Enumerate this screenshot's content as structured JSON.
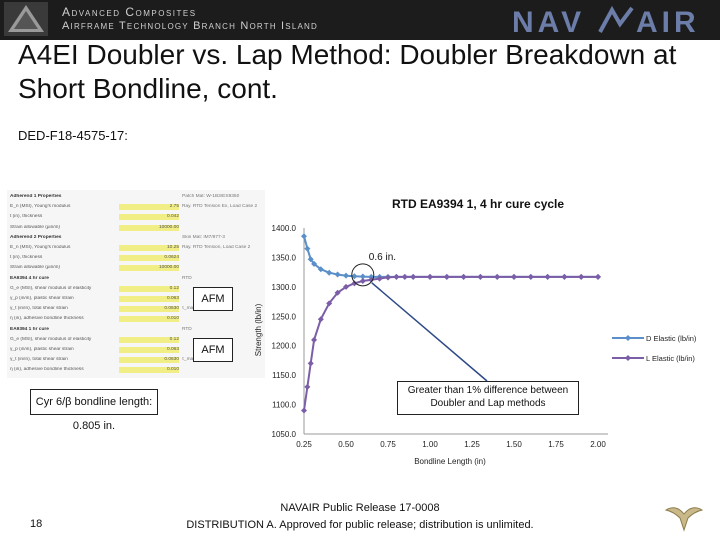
{
  "banner": {
    "line1": "Advanced Composites",
    "line2": "Airframe Technology Branch North Island",
    "logo_text": "NAVAIR"
  },
  "slide": {
    "title": "A4EI Doubler vs. Lap Method: Doubler Breakdown at Short Bondline, cont.",
    "doc_id": "DED-F18-4575-17:",
    "page_number": "18"
  },
  "properties_panel": {
    "rows": [
      {
        "label": "Adherend 1 Properties",
        "value": "",
        "note": "Patch Mat: W-1B3/ES9350",
        "header": true
      },
      {
        "label": "E_n (MSI), Young's modulus",
        "value": "2.75",
        "note": "Ray. RTD Tension Ex, Load Case 2"
      },
      {
        "label": "t (in), thickness",
        "value": "0.042",
        "note": ""
      },
      {
        "label": "Strain allowable (µin/in)",
        "value": "10000.00",
        "note": ""
      },
      {
        "label": "Adherend 2 Properties",
        "value": "",
        "note": "Skin Mat: IM7/977-3",
        "header": true
      },
      {
        "label": "E_n (MSI), Young's modulus",
        "value": "10.25",
        "note": "Ray. RTD Tension, Load Case 2"
      },
      {
        "label": "t (in), thickness",
        "value": "0.0624",
        "note": ""
      },
      {
        "label": "Strain allowable (µin/in)",
        "value": "10000.00",
        "note": ""
      },
      {
        "label": "EA9394 4 hr cure",
        "value": "",
        "note": "RTD",
        "header": true
      },
      {
        "label": "G_e (MSI), shear modulus of elasticity",
        "value": "0.12",
        "note": ""
      },
      {
        "label": "γ_p (in/in), plastic shear strain",
        "value": "0.063",
        "note": ""
      },
      {
        "label": "γ_t (in/in), total shear strain",
        "value": "0.0630",
        "note": "τ_max"
      },
      {
        "label": "η (in), adhesive bondline thickness",
        "value": "0.010",
        "note": ""
      },
      {
        "label": "EA9394 1 hr cure",
        "value": "",
        "note": "RTD",
        "header": true
      },
      {
        "label": "G_e (MSI), shear modulus of elasticity",
        "value": "0.12",
        "note": ""
      },
      {
        "label": "γ_p (in/in), plastic shear strain",
        "value": "0.063",
        "note": ""
      },
      {
        "label": "γ_t (in/in), total shear strain",
        "value": "0.0630",
        "note": "τ_max"
      },
      {
        "label": "η (in), adhesive bondline thickness",
        "value": "0.010",
        "note": ""
      }
    ],
    "afm_label_1": "AFM",
    "afm_label_2": "AFM",
    "cyr_label": "Cyr 6/β bondline length: 0.805 in."
  },
  "chart_data": {
    "type": "line",
    "title": "RTD EA9394  1, 4 hr cure cycle",
    "xlabel": "Bondline Length (in)",
    "ylabel": "Strength (lb/in)",
    "xlim": [
      0.25,
      2.0
    ],
    "ylim": [
      1050,
      1400
    ],
    "x_ticks": [
      0.25,
      0.5,
      0.75,
      1.0,
      1.25,
      1.5,
      1.75,
      2.0
    ],
    "x_tick_labels": [
      "0.25",
      "0.50",
      "0.75",
      "1.00",
      "1.25",
      "1.50",
      "1.75",
      "2.00"
    ],
    "y_ticks": [
      1050,
      1100,
      1150,
      1200,
      1250,
      1300,
      1350,
      1400
    ],
    "y_tick_labels": [
      "1050.0",
      "1100.0",
      "1150.0",
      "1200.0",
      "1250.0",
      "1300.0",
      "1350.0",
      "1400.0"
    ],
    "grid": false,
    "legend_position": "right",
    "series": [
      {
        "name": "D Elastic  (lb/in)",
        "color": "#5b8fc9",
        "marker": "diamond",
        "x": [
          0.25,
          0.27,
          0.29,
          0.31,
          0.35,
          0.4,
          0.45,
          0.5,
          0.55,
          0.6,
          0.65,
          0.7,
          0.75,
          0.8,
          0.85,
          0.9,
          1.0,
          1.1,
          1.2,
          1.3,
          1.4,
          1.5,
          1.6,
          1.7,
          1.8,
          1.9,
          2.0
        ],
        "y": [
          1386,
          1365,
          1347,
          1339,
          1330,
          1324,
          1321,
          1319,
          1318,
          1317.5,
          1317,
          1317,
          1317,
          1317,
          1317,
          1317,
          1317,
          1317,
          1317,
          1317,
          1317,
          1317,
          1317,
          1317,
          1317,
          1317,
          1317
        ]
      },
      {
        "name": "L Elastic  (lb/in)",
        "color": "#7b5ea7",
        "marker": "diamond",
        "x": [
          0.25,
          0.27,
          0.29,
          0.31,
          0.35,
          0.4,
          0.45,
          0.5,
          0.55,
          0.6,
          0.65,
          0.7,
          0.75,
          0.8,
          0.85,
          0.9,
          1.0,
          1.1,
          1.2,
          1.3,
          1.4,
          1.5,
          1.6,
          1.7,
          1.8,
          1.9,
          2.0
        ],
        "y": [
          1090,
          1130,
          1170,
          1210,
          1245,
          1272,
          1290,
          1300,
          1306,
          1310,
          1312,
          1314,
          1316,
          1317,
          1317,
          1317,
          1317,
          1317,
          1317,
          1317,
          1317,
          1317,
          1317,
          1317,
          1317,
          1317,
          1317
        ]
      }
    ],
    "annotations": [
      {
        "text": "0.6 in.",
        "x": 0.6,
        "y": 1317
      },
      {
        "text": "Greater than 1% difference between Doubler and Lap methods",
        "x": 1.3,
        "y": 1115
      }
    ]
  },
  "footer": {
    "line1": "NAVAIR Public Release 17-0008",
    "line2": "DISTRIBUTION A. Approved for public release; distribution is unlimited."
  }
}
